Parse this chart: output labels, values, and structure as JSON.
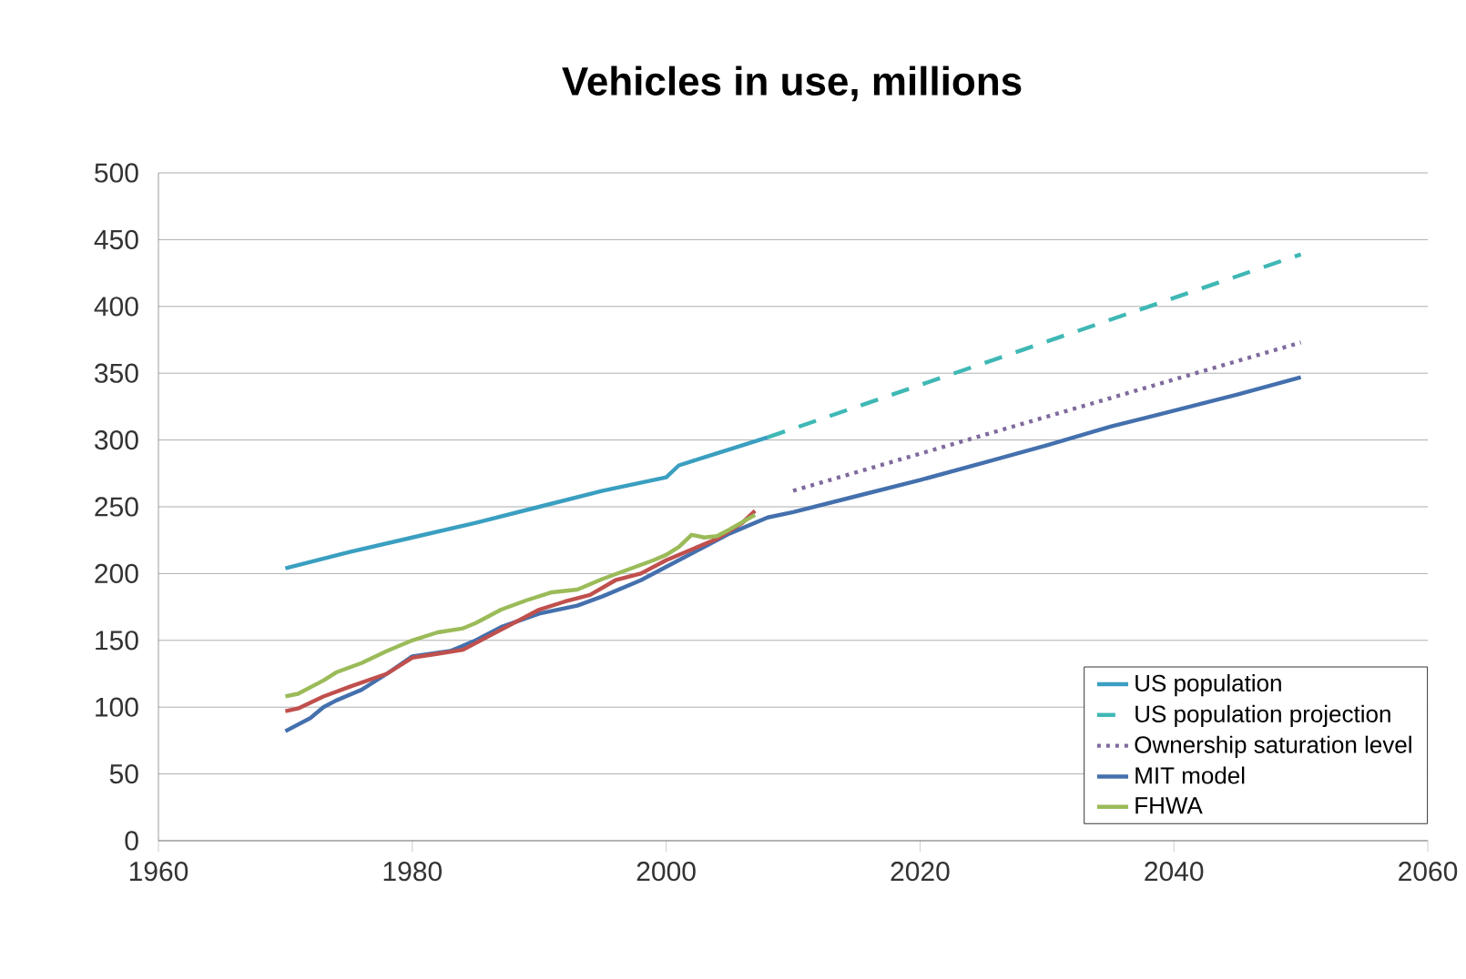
{
  "chart_data": {
    "type": "line",
    "title": "Vehicles in use, millions",
    "xlim": [
      1960,
      2060
    ],
    "xticks": [
      1960,
      1980,
      2000,
      2020,
      2040,
      2060
    ],
    "ylim": [
      0,
      500
    ],
    "yticks": [
      0,
      50,
      100,
      150,
      200,
      250,
      300,
      350,
      400,
      450,
      500
    ],
    "grid": "y",
    "legend": "bottom right",
    "marker": "none",
    "series": [
      {
        "name": "US population",
        "color": "#3a9fc0",
        "line_style": "solid",
        "x": [
          1970,
          1975,
          1980,
          1985,
          1990,
          1995,
          2000,
          2001,
          2003,
          2005,
          2008
        ],
        "values": [
          204,
          216,
          227,
          238,
          250,
          262,
          272,
          281,
          287,
          293,
          302
        ]
      },
      {
        "name": "US population projection",
        "color": "#3fb8b5",
        "line_style": "dashed",
        "x": [
          2008,
          2050
        ],
        "values": [
          302,
          439
        ]
      },
      {
        "name": "Ownership saturation level",
        "color": "#7f6a9e",
        "line_style": "dotted",
        "x": [
          2010,
          2050
        ],
        "values": [
          262,
          373
        ]
      },
      {
        "name": "MIT model",
        "color": "#4470ad",
        "line_style": "solid",
        "x": [
          1970,
          1972,
          1973,
          1974,
          1976,
          1978,
          1980,
          1983,
          1985,
          1987,
          1990,
          1993,
          1995,
          1998,
          2000,
          2003,
          2005,
          2008,
          2010,
          2015,
          2020,
          2025,
          2030,
          2035,
          2040,
          2045,
          2050
        ],
        "values": [
          82,
          92,
          100,
          105,
          113,
          125,
          138,
          142,
          150,
          160,
          170,
          176,
          183,
          195,
          205,
          220,
          230,
          242,
          246,
          258,
          270,
          283,
          296,
          310,
          322,
          334,
          347
        ]
      },
      {
        "color": "#c0504d",
        "line_style": "solid",
        "x": [
          1970,
          1971,
          1973,
          1975,
          1978,
          1980,
          1982,
          1984,
          1986,
          1988,
          1990,
          1992,
          1994,
          1996,
          1998,
          2000,
          2002,
          2004,
          2006,
          2007
        ],
        "values": [
          97,
          99,
          108,
          115,
          125,
          137,
          140,
          143,
          153,
          163,
          173,
          179,
          184,
          195,
          200,
          210,
          218,
          226,
          238,
          247
        ]
      },
      {
        "name": "FHWA",
        "color": "#9bbb59",
        "line_style": "solid",
        "x": [
          1970,
          1971,
          1973,
          1974,
          1976,
          1978,
          1980,
          1982,
          1984,
          1985,
          1987,
          1989,
          1991,
          1993,
          1995,
          1997,
          1999,
          2000,
          2001,
          2002,
          2003,
          2004,
          2005,
          2007
        ],
        "values": [
          108,
          110,
          120,
          126,
          133,
          142,
          150,
          156,
          159,
          163,
          173,
          180,
          186,
          188,
          196,
          203,
          210,
          214,
          220,
          229,
          227,
          228,
          233,
          244
        ]
      }
    ]
  }
}
